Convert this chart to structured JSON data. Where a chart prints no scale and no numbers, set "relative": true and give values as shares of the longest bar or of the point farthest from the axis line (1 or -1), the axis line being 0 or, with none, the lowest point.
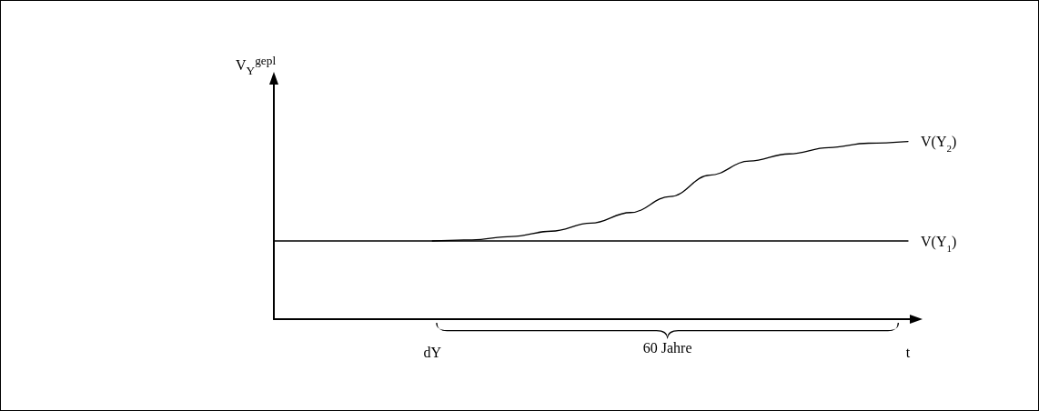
{
  "chart_data": {
    "type": "line",
    "relative": true,
    "marker": "none",
    "ylabel": "V$_{Y}$$^{gepl}$",
    "annotations": [
      "60 Jahre"
    ],
    "categories": [
      null,
      null,
      null,
      null,
      "dY",
      null,
      null,
      null,
      null,
      null,
      null,
      null,
      null,
      null,
      null,
      null,
      "t"
    ],
    "series": [
      {
        "name": "V(Y$_{1}$)",
        "color": "#000000",
        "values": [
          0.44,
          0.44,
          0.44,
          0.44,
          0.44,
          0.44,
          0.44,
          0.44,
          0.44,
          0.44,
          0.44,
          0.44,
          0.44,
          0.44,
          0.44,
          0.44,
          0.44
        ]
      },
      {
        "name": "V(Y$_{2}$)",
        "color": "#000000",
        "values": [
          null,
          null,
          null,
          null,
          0.44,
          0.446,
          0.465,
          0.495,
          0.54,
          0.6,
          0.69,
          0.81,
          0.89,
          0.93,
          0.965,
          0.99,
          1
        ]
      }
    ]
  }
}
